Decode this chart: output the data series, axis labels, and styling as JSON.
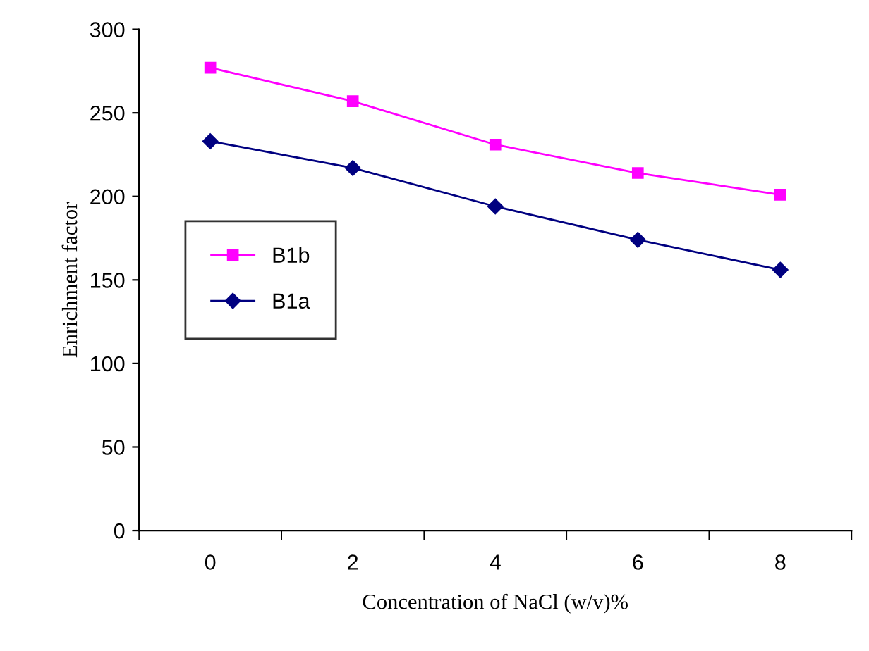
{
  "chart_data": {
    "type": "line",
    "xlabel": "Concentration of NaCl (w/v)%",
    "ylabel": "Enrichment factor",
    "categories": [
      "0",
      "2",
      "4",
      "6",
      "8"
    ],
    "ylim": [
      0,
      300
    ],
    "yticks": [
      0,
      50,
      100,
      150,
      200,
      250,
      300
    ],
    "grid": false,
    "legend": "left",
    "series": [
      {
        "name": "B1b",
        "color": "#ff00ff",
        "marker": "square",
        "values": [
          277,
          257,
          231,
          214,
          201
        ]
      },
      {
        "name": "B1a",
        "color": "#000080",
        "marker": "diamond",
        "values": [
          233,
          217,
          194,
          174,
          156
        ]
      }
    ]
  }
}
